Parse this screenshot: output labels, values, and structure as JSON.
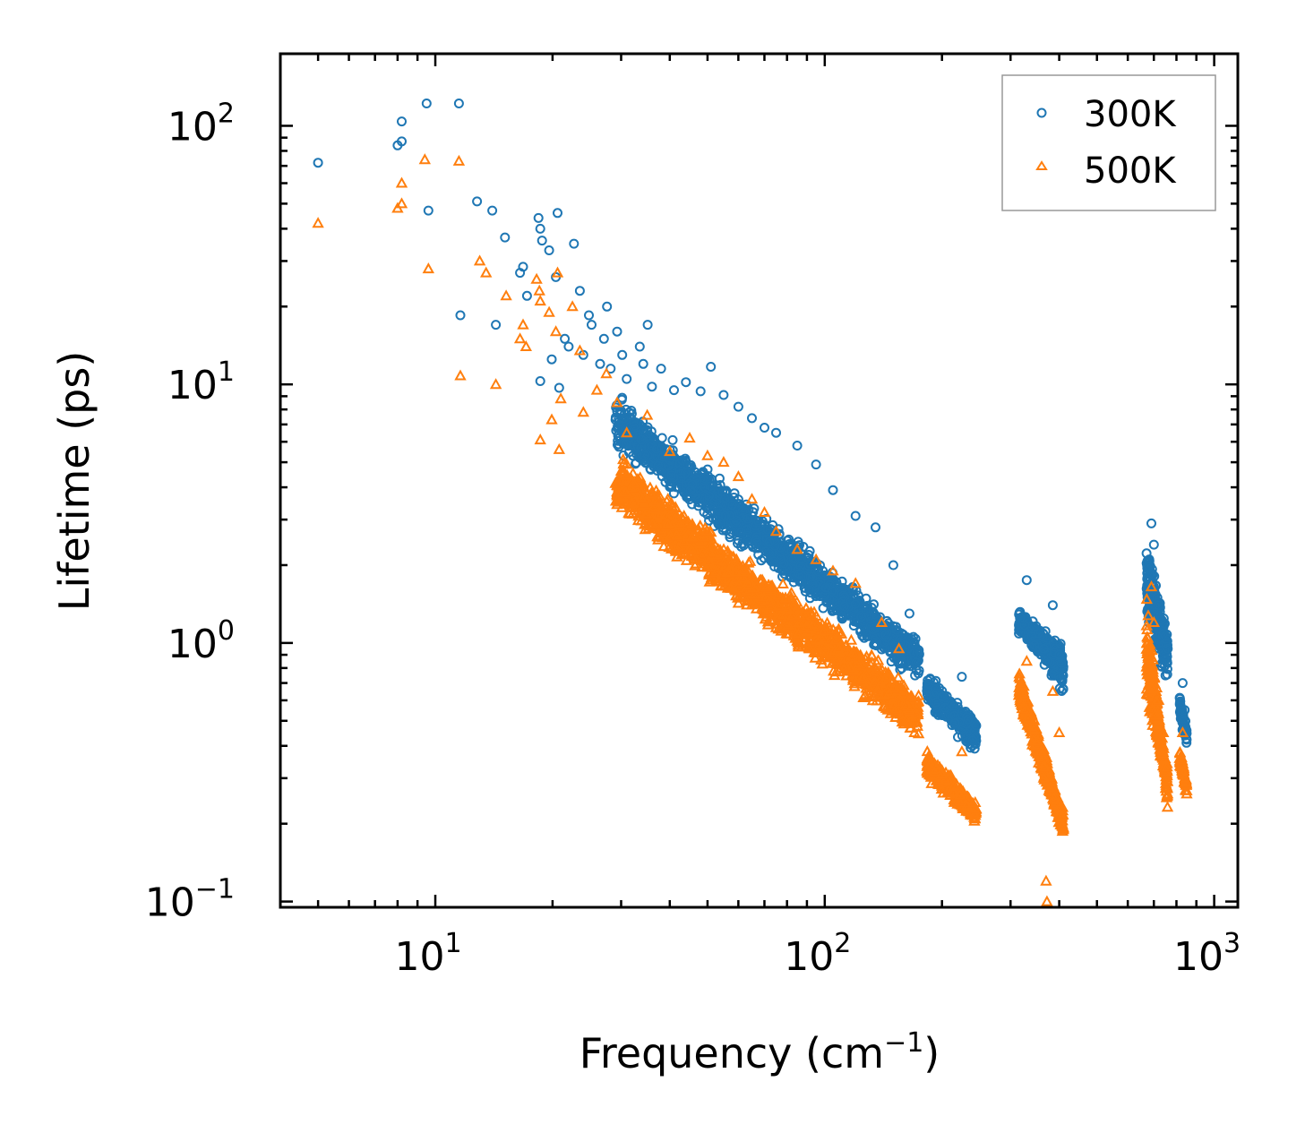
{
  "chart_data": {
    "type": "scatter",
    "title": "",
    "xlabel": "Frequency (cm",
    "xlabel_sup": "−1",
    "xlabel_close": ")",
    "ylabel": "Lifetime (ps)",
    "xscale": "log",
    "yscale": "log",
    "xlim": [
      4.0,
      1150
    ],
    "ylim": [
      0.095,
      190
    ],
    "x_ticks": [
      {
        "value": 10,
        "base": "10",
        "exp": "1"
      },
      {
        "value": 100,
        "base": "10",
        "exp": "2"
      },
      {
        "value": 1000,
        "base": "10",
        "exp": "3"
      }
    ],
    "y_ticks": [
      {
        "value": 0.1,
        "base": "10",
        "exp": "−1"
      },
      {
        "value": 1,
        "base": "10",
        "exp": "0"
      },
      {
        "value": 10,
        "base": "10",
        "exp": "1"
      },
      {
        "value": 100,
        "base": "10",
        "exp": "2"
      }
    ],
    "legend": {
      "position": "top-right"
    },
    "series": [
      {
        "name": "300K",
        "marker": "circle",
        "color": "#1f77b4",
        "points": [
          [
            5,
            72
          ],
          [
            8,
            84
          ],
          [
            8.2,
            87
          ],
          [
            8.2,
            104
          ],
          [
            9.5,
            122
          ],
          [
            9.6,
            47
          ],
          [
            11.5,
            122
          ],
          [
            11.6,
            18.5
          ],
          [
            12.8,
            51
          ],
          [
            14,
            47
          ],
          [
            14.3,
            17
          ],
          [
            15.1,
            37
          ],
          [
            16.5,
            27
          ],
          [
            16.8,
            28.5
          ],
          [
            17.2,
            22
          ],
          [
            18.4,
            44
          ],
          [
            18.6,
            40
          ],
          [
            18.8,
            36
          ],
          [
            19.6,
            33
          ],
          [
            20.4,
            26
          ],
          [
            20.6,
            46
          ],
          [
            20.8,
            9.7
          ],
          [
            18.6,
            10.3
          ],
          [
            19.9,
            12.5
          ],
          [
            21.5,
            15
          ],
          [
            22,
            14
          ],
          [
            22.7,
            35
          ],
          [
            23.5,
            23
          ],
          [
            24,
            13
          ],
          [
            24.8,
            18.5
          ],
          [
            25.2,
            17
          ],
          [
            26.5,
            12
          ],
          [
            27.1,
            15
          ],
          [
            27.6,
            20
          ],
          [
            28.2,
            11.5
          ],
          [
            29.3,
            16
          ],
          [
            30.2,
            13
          ],
          [
            31,
            10.5
          ],
          [
            33.5,
            14
          ],
          [
            34.2,
            12
          ],
          [
            35.1,
            17
          ],
          [
            36,
            9.8
          ],
          [
            38,
            11.5
          ],
          [
            41,
            9.5
          ],
          [
            44,
            10.2
          ],
          [
            48,
            9.4
          ],
          [
            51,
            11.7
          ],
          [
            55,
            9.1
          ],
          [
            60,
            8.2
          ],
          [
            65,
            7.4
          ],
          [
            70,
            6.8
          ],
          [
            75,
            6.5
          ],
          [
            85,
            5.8
          ],
          [
            95,
            4.9
          ],
          [
            105,
            3.9
          ],
          [
            120,
            3.1
          ],
          [
            135,
            2.8
          ],
          [
            150,
            2.0
          ],
          [
            165,
            1.3
          ],
          [
            170,
            1.0
          ],
          [
            200,
            0.62
          ],
          [
            215,
            0.57
          ],
          [
            225,
            0.74
          ],
          [
            240,
            0.42
          ],
          [
            330,
            1.75
          ],
          [
            345,
            1.15
          ],
          [
            365,
            0.95
          ],
          [
            385,
            1.4
          ],
          [
            400,
            0.9
          ],
          [
            690,
            2.9
          ],
          [
            700,
            2.4
          ],
          [
            720,
            1.4
          ],
          [
            760,
            0.95
          ],
          [
            830,
            0.7
          ],
          [
            840,
            0.55
          ]
        ],
        "bands": [
          {
            "x": [
              29,
              175
            ],
            "y_start": [
              8.5,
              0.95
            ],
            "y_end": [
              6.0,
              0.75
            ],
            "spread": 0.55,
            "count": 1700
          },
          {
            "x": [
              183,
              245
            ],
            "y_start": [
              0.72,
              0.5
            ],
            "y_end": [
              0.62,
              0.38
            ],
            "spread": 0.45,
            "count": 340
          },
          {
            "x": [
              315,
              410
            ],
            "y_start": [
              1.2,
              0.9
            ],
            "y_end": [
              1.25,
              0.7
            ],
            "spread": 0.6,
            "count": 380
          },
          {
            "x": [
              670,
              760
            ],
            "y_start": [
              2.6,
              1.0
            ],
            "y_end": [
              1.3,
              0.75
            ],
            "spread": 0.6,
            "count": 260
          },
          {
            "x": [
              815,
              850
            ],
            "y_start": [
              0.6,
              0.45
            ],
            "y_end": [
              0.55,
              0.42
            ],
            "spread": 0.4,
            "count": 60
          }
        ]
      },
      {
        "name": "500K",
        "marker": "triangle",
        "color": "#ff7f0e",
        "points": [
          [
            5,
            42
          ],
          [
            8,
            48
          ],
          [
            8.2,
            50
          ],
          [
            8.2,
            60
          ],
          [
            9.4,
            74
          ],
          [
            9.6,
            28
          ],
          [
            11.5,
            73
          ],
          [
            11.6,
            10.8
          ],
          [
            13,
            30
          ],
          [
            13.5,
            27
          ],
          [
            14.3,
            10
          ],
          [
            15.2,
            22
          ],
          [
            16.5,
            15
          ],
          [
            16.8,
            17
          ],
          [
            17.1,
            14
          ],
          [
            18.2,
            25.5
          ],
          [
            18.5,
            23
          ],
          [
            18.6,
            21
          ],
          [
            19.6,
            19
          ],
          [
            20.4,
            16
          ],
          [
            20.6,
            27
          ],
          [
            20.8,
            5.6
          ],
          [
            18.6,
            6.1
          ],
          [
            19.9,
            7.3
          ],
          [
            21,
            8.8
          ],
          [
            22.5,
            20
          ],
          [
            23.5,
            13.5
          ],
          [
            24,
            7.8
          ],
          [
            26,
            9.5
          ],
          [
            27.5,
            11
          ],
          [
            29.3,
            8.5
          ],
          [
            31,
            6.5
          ],
          [
            35,
            7.6
          ],
          [
            40,
            5.5
          ],
          [
            45,
            6.2
          ],
          [
            50,
            5.3
          ],
          [
            55,
            5.0
          ],
          [
            60,
            4.4
          ],
          [
            65,
            3.6
          ],
          [
            70,
            3.2
          ],
          [
            75,
            2.7
          ],
          [
            85,
            2.3
          ],
          [
            95,
            2.1
          ],
          [
            105,
            1.9
          ],
          [
            120,
            1.7
          ],
          [
            140,
            1.2
          ],
          [
            155,
            0.95
          ],
          [
            165,
            0.55
          ],
          [
            170,
            0.45
          ],
          [
            200,
            0.31
          ],
          [
            215,
            0.28
          ],
          [
            225,
            0.38
          ],
          [
            240,
            0.24
          ],
          [
            330,
            0.85
          ],
          [
            345,
            0.5
          ],
          [
            365,
            0.3
          ],
          [
            370,
            0.12
          ],
          [
            372,
            0.1
          ],
          [
            385,
            0.65
          ],
          [
            400,
            0.45
          ],
          [
            690,
            1.65
          ],
          [
            700,
            1.2
          ],
          [
            720,
            0.6
          ],
          [
            740,
            0.45
          ],
          [
            830,
            0.45
          ],
          [
            840,
            0.3
          ]
        ],
        "bands": [
          {
            "x": [
              29,
              175
            ],
            "y_start": [
              5.0,
              0.6
            ],
            "y_end": [
              3.5,
              0.45
            ],
            "spread": 0.55,
            "count": 1700
          },
          {
            "x": [
              183,
              245
            ],
            "y_start": [
              0.36,
              0.22
            ],
            "y_end": [
              0.32,
              0.22
            ],
            "spread": 0.5,
            "count": 340
          },
          {
            "x": [
              315,
              410
            ],
            "y_start": [
              0.7,
              0.2
            ],
            "y_end": [
              0.65,
              0.2
            ],
            "spread": 0.7,
            "count": 380
          },
          {
            "x": [
              670,
              760
            ],
            "y_start": [
              1.4,
              0.25
            ],
            "y_end": [
              0.7,
              0.3
            ],
            "spread": 0.7,
            "count": 260
          },
          {
            "x": [
              815,
              850
            ],
            "y_start": [
              0.38,
              0.27
            ],
            "y_end": [
              0.36,
              0.28
            ],
            "spread": 0.4,
            "count": 60
          }
        ]
      }
    ]
  }
}
